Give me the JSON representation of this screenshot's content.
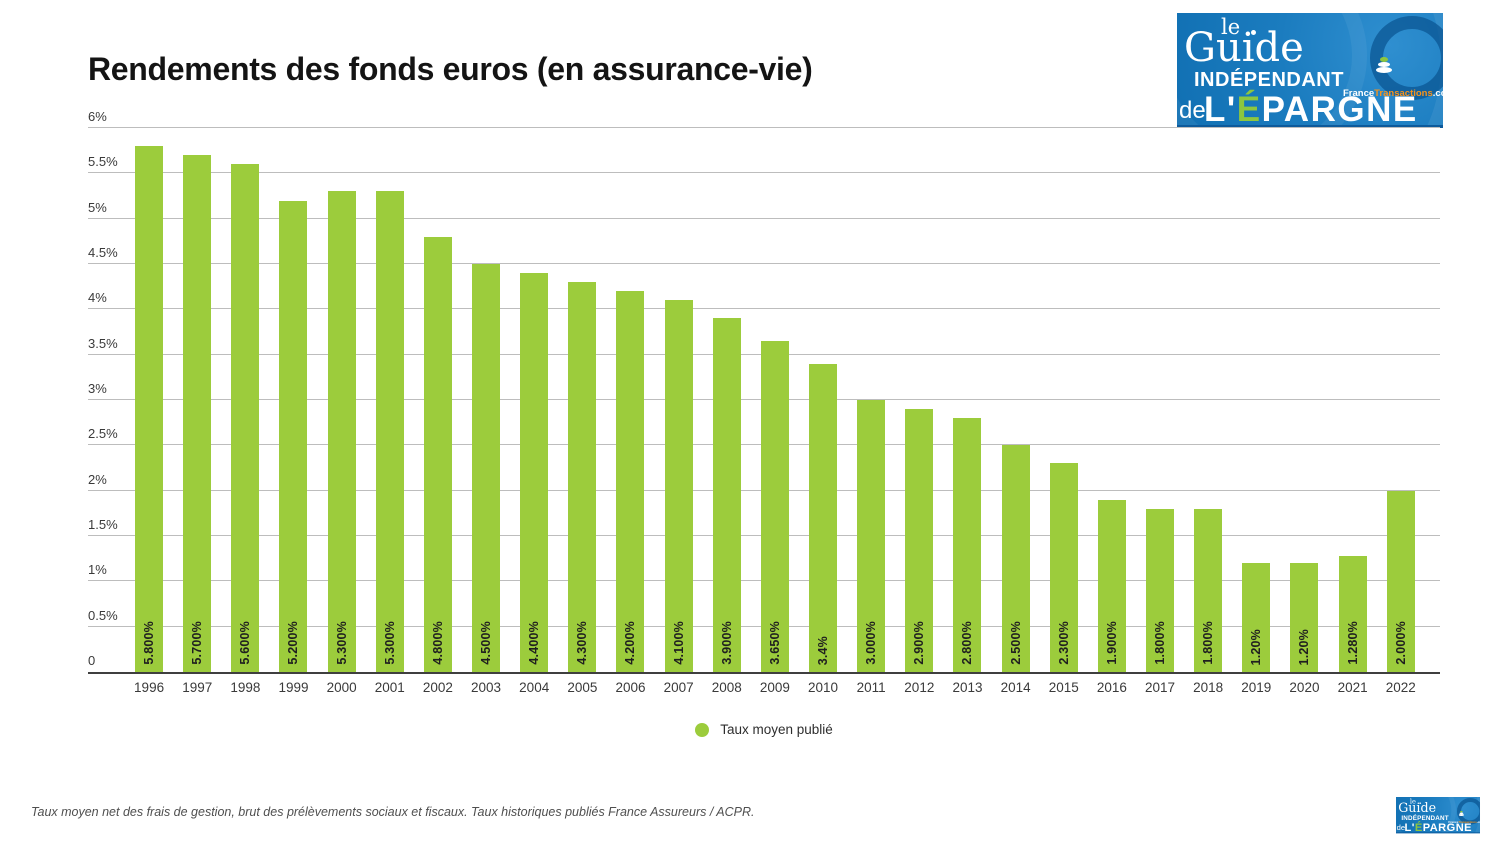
{
  "chart_data": {
    "type": "bar",
    "title": "Rendements des fonds euros (en assurance-vie)",
    "categories": [
      "1996",
      "1997",
      "1998",
      "1999",
      "2000",
      "2001",
      "2002",
      "2003",
      "2004",
      "2005",
      "2006",
      "2007",
      "2008",
      "2009",
      "2010",
      "2011",
      "2012",
      "2013",
      "2014",
      "2015",
      "2016",
      "2017",
      "2018",
      "2019",
      "2020",
      "2021",
      "2022"
    ],
    "values": [
      5.8,
      5.7,
      5.6,
      5.2,
      5.3,
      5.3,
      4.8,
      4.5,
      4.4,
      4.3,
      4.2,
      4.1,
      3.9,
      3.65,
      3.4,
      3.0,
      2.9,
      2.8,
      2.5,
      2.3,
      1.9,
      1.8,
      1.8,
      1.2,
      1.2,
      1.28,
      2.0
    ],
    "bar_labels": [
      "5.800%",
      "5.700%",
      "5.600%",
      "5.200%",
      "5.300%",
      "5.300%",
      "4.800%",
      "4.500%",
      "4.400%",
      "4.300%",
      "4.200%",
      "4.100%",
      "3.900%",
      "3.650%",
      "3.4%",
      "3.000%",
      "2.900%",
      "2.800%",
      "2.500%",
      "2.300%",
      "1.900%",
      "1.800%",
      "1.800%",
      "1.20%",
      "1.20%",
      "1.280%",
      "2.000%"
    ],
    "xlabel": "",
    "ylabel": "",
    "ylim": [
      0,
      6
    ],
    "y_ticks": [
      {
        "value": 0,
        "label": "0"
      },
      {
        "value": 0.5,
        "label": "0.5%"
      },
      {
        "value": 1,
        "label": "1%"
      },
      {
        "value": 1.5,
        "label": "1.5%"
      },
      {
        "value": 2,
        "label": "2%"
      },
      {
        "value": 2.5,
        "label": "2.5%"
      },
      {
        "value": 3,
        "label": "3%"
      },
      {
        "value": 3.5,
        "label": "3.5%"
      },
      {
        "value": 4,
        "label": "4%"
      },
      {
        "value": 4.5,
        "label": "4.5%"
      },
      {
        "value": 5,
        "label": "5%"
      },
      {
        "value": 5.5,
        "label": "5.5%"
      },
      {
        "value": 6,
        "label": "6%"
      }
    ],
    "grid": true,
    "bar_color": "#9ccc3c",
    "legend": {
      "label": "Taux moyen publié",
      "position": "bottom"
    }
  },
  "logo": {
    "le": "le",
    "guide": "Guide",
    "independant": "INDÉPENDANT",
    "site_france": "France",
    "site_transactions": "Transactions",
    "site_com": ".com",
    "de": "de",
    "lepargne_l": "L'",
    "lepargne_e": "É",
    "lepargne_rest": "PARGNE",
    "colors": {
      "background_blue": "#1b7cbf",
      "accent_green": "#8dc63f",
      "accent_orange": "#f7941d"
    }
  },
  "footer": {
    "note": "Taux moyen net des frais de gestion, brut des prélèvements sociaux et fiscaux. Taux historiques publiés France Assureurs / ACPR."
  }
}
